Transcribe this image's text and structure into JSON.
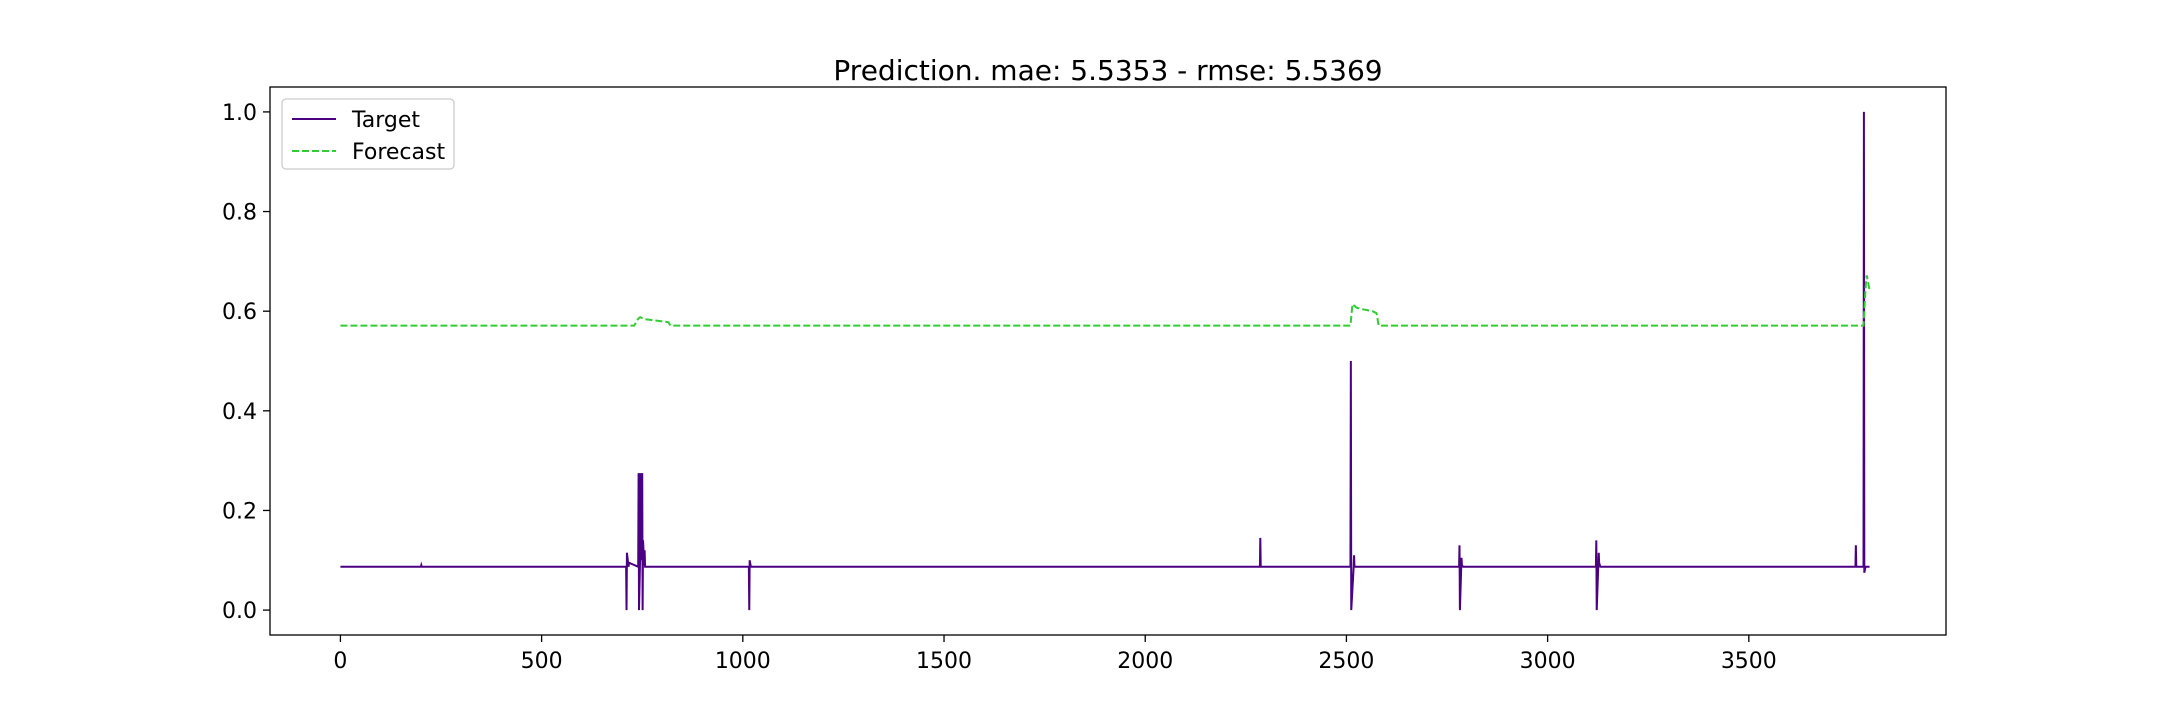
{
  "chart_data": {
    "type": "line",
    "title": "Prediction. mae: 5.5353 - rmse: 5.5369",
    "xlabel": "",
    "ylabel": "",
    "xlim": [
      -175,
      3990
    ],
    "ylim": [
      -0.05,
      1.05
    ],
    "xticks": [
      0,
      500,
      1000,
      1500,
      2000,
      2500,
      3000,
      3500
    ],
    "xtick_labels": [
      "0",
      "500",
      "1000",
      "1500",
      "2000",
      "2500",
      "3000",
      "3500"
    ],
    "yticks": [
      0.0,
      0.2,
      0.4,
      0.6,
      0.8,
      1.0
    ],
    "ytick_labels": [
      "0.0",
      "0.2",
      "0.4",
      "0.6",
      "0.8",
      "1.0"
    ],
    "grid": false,
    "legend_position": "upper-left",
    "series": [
      {
        "name": "Target",
        "color": "#4b0082",
        "style": "solid",
        "x": [
          0,
          200,
          201,
          202,
          710,
          711,
          712,
          716,
          717,
          740,
          741,
          742,
          745,
          746,
          747,
          750,
          751,
          752,
          755,
          756,
          757,
          762,
          1015,
          1016,
          1017,
          1020,
          2285,
          2286,
          2287,
          2290,
          2510,
          2511,
          2512,
          2518,
          2519,
          2520,
          2525,
          2780,
          2781,
          2782,
          2786,
          2787,
          2790,
          3120,
          3121,
          3122,
          3127,
          3128,
          3131,
          3765,
          3766,
          3767,
          3785,
          3786,
          3787,
          3790,
          3791,
          3800
        ],
        "y": [
          0.087,
          0.087,
          0.09,
          0.087,
          0.087,
          0.0,
          0.115,
          0.087,
          0.095,
          0.087,
          0.275,
          0.0,
          0.115,
          0.275,
          0.1,
          0.275,
          0.0,
          0.14,
          0.09,
          0.12,
          0.087,
          0.087,
          0.087,
          0.0,
          0.1,
          0.087,
          0.087,
          0.145,
          0.087,
          0.087,
          0.087,
          0.5,
          0.0,
          0.087,
          0.11,
          0.087,
          0.087,
          0.087,
          0.13,
          0.0,
          0.105,
          0.09,
          0.087,
          0.087,
          0.14,
          0.0,
          0.115,
          0.095,
          0.087,
          0.087,
          0.13,
          0.087,
          0.087,
          1.0,
          0.075,
          0.087,
          0.087,
          0.087
        ]
      },
      {
        "name": "Forecast",
        "color": "#32cd32",
        "style": "dashed",
        "x": [
          0,
          730,
          740,
          745,
          755,
          775,
          795,
          815,
          820,
          2510,
          2515,
          2525,
          2545,
          2565,
          2575,
          2580,
          3785,
          3790,
          3793,
          3796,
          3800
        ],
        "y": [
          0.571,
          0.571,
          0.585,
          0.588,
          0.584,
          0.582,
          0.58,
          0.578,
          0.571,
          0.571,
          0.614,
          0.607,
          0.603,
          0.6,
          0.596,
          0.571,
          0.571,
          0.645,
          0.672,
          0.66,
          0.642
        ]
      }
    ]
  }
}
